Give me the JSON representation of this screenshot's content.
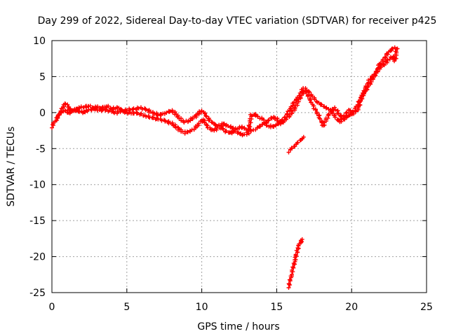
{
  "chart_data": {
    "type": "scatter",
    "title": "Day 299 of 2022, Sidereal Day-to-day VTEC variation (SDTVAR) for receiver p425",
    "xlabel": "GPS time / hours",
    "ylabel": "SDTVAR / TECUs",
    "xlim": [
      0,
      25
    ],
    "ylim": [
      -25,
      10
    ],
    "xticks": [
      0,
      5,
      10,
      15,
      20,
      25
    ],
    "yticks": [
      10,
      5,
      0,
      -5,
      -10,
      -15,
      -20,
      -25
    ],
    "grid": true,
    "marker": "+",
    "series": [
      {
        "name": "SDTVAR p425",
        "color": "#ff0000",
        "segments": [
          [
            [
              0.0,
              -2.0
            ],
            [
              0.1,
              -1.5
            ],
            [
              0.3,
              -1.0
            ],
            [
              0.5,
              -0.3
            ],
            [
              0.7,
              0.6
            ],
            [
              0.9,
              1.3
            ],
            [
              1.1,
              0.7
            ],
            [
              1.3,
              0.2
            ],
            [
              1.6,
              0.4
            ],
            [
              1.9,
              0.7
            ],
            [
              2.2,
              0.8
            ],
            [
              2.5,
              0.9
            ],
            [
              2.8,
              0.6
            ],
            [
              3.1,
              0.3
            ],
            [
              3.5,
              0.4
            ],
            [
              3.9,
              0.2
            ],
            [
              4.3,
              0.0
            ],
            [
              4.7,
              0.3
            ],
            [
              5.1,
              0.4
            ],
            [
              5.5,
              0.5
            ],
            [
              5.9,
              0.7
            ],
            [
              6.3,
              0.4
            ],
            [
              6.7,
              0.0
            ],
            [
              7.1,
              -0.3
            ],
            [
              7.5,
              -0.2
            ],
            [
              7.9,
              0.3
            ],
            [
              8.2,
              0.0
            ],
            [
              8.5,
              -0.8
            ],
            [
              8.8,
              -1.3
            ],
            [
              9.1,
              -1.2
            ],
            [
              9.4,
              -0.8
            ],
            [
              9.7,
              -0.3
            ],
            [
              10.0,
              0.3
            ],
            [
              10.2,
              -0.2
            ],
            [
              10.5,
              -1.0
            ],
            [
              10.8,
              -1.6
            ],
            [
              11.1,
              -1.9
            ],
            [
              11.4,
              -1.5
            ],
            [
              11.7,
              -1.8
            ],
            [
              12.0,
              -2.1
            ],
            [
              12.3,
              -2.3
            ],
            [
              12.6,
              -2.0
            ],
            [
              12.9,
              -2.2
            ],
            [
              13.2,
              -2.5
            ],
            [
              13.5,
              -2.4
            ],
            [
              13.8,
              -2.0
            ],
            [
              14.1,
              -1.6
            ],
            [
              14.4,
              -1.2
            ],
            [
              14.7,
              -0.6
            ],
            [
              15.0,
              -0.9
            ],
            [
              15.3,
              -1.5
            ],
            [
              15.6,
              -1.0
            ],
            [
              15.9,
              -0.3
            ],
            [
              16.2,
              0.6
            ],
            [
              16.5,
              1.8
            ],
            [
              16.8,
              3.0
            ],
            [
              17.0,
              2.7
            ],
            [
              17.3,
              1.5
            ],
            [
              17.6,
              0.3
            ],
            [
              17.9,
              -0.8
            ],
            [
              18.1,
              -1.8
            ],
            [
              18.3,
              -1.0
            ],
            [
              18.6,
              0.2
            ],
            [
              18.9,
              0.6
            ],
            [
              19.2,
              -0.3
            ],
            [
              19.5,
              -1.0
            ],
            [
              19.8,
              -0.3
            ],
            [
              20.1,
              -0.2
            ],
            [
              20.4,
              0.4
            ],
            [
              20.6,
              1.5
            ],
            [
              20.8,
              2.8
            ],
            [
              21.0,
              3.8
            ],
            [
              21.3,
              4.9
            ],
            [
              21.6,
              5.4
            ],
            [
              21.9,
              6.3
            ],
            [
              22.2,
              6.8
            ],
            [
              22.5,
              7.4
            ],
            [
              22.8,
              7.8
            ]
          ],
          [
            [
              0.3,
              -0.6
            ],
            [
              0.6,
              0.0
            ],
            [
              0.9,
              0.3
            ],
            [
              1.2,
              -0.1
            ],
            [
              1.5,
              0.5
            ],
            [
              1.8,
              0.2
            ],
            [
              2.1,
              0.0
            ],
            [
              2.4,
              0.3
            ],
            [
              2.7,
              0.5
            ],
            [
              3.0,
              0.8
            ],
            [
              3.3,
              0.6
            ],
            [
              3.7,
              0.9
            ],
            [
              4.0,
              0.5
            ],
            [
              4.4,
              0.7
            ],
            [
              4.8,
              0.1
            ],
            [
              5.2,
              -0.1
            ],
            [
              5.6,
              0.0
            ],
            [
              6.0,
              -0.3
            ],
            [
              6.4,
              -0.5
            ],
            [
              6.8,
              -0.8
            ],
            [
              7.2,
              -0.9
            ],
            [
              7.6,
              -1.2
            ],
            [
              8.0,
              -1.5
            ],
            [
              8.3,
              -2.0
            ],
            [
              8.6,
              -2.5
            ],
            [
              8.9,
              -2.8
            ],
            [
              9.2,
              -2.6
            ],
            [
              9.5,
              -2.3
            ],
            [
              9.8,
              -1.5
            ],
            [
              10.1,
              -1.0
            ],
            [
              10.4,
              -2.0
            ],
            [
              10.7,
              -2.5
            ],
            [
              11.0,
              -2.3
            ],
            [
              11.3,
              -2.0
            ],
            [
              11.6,
              -2.6
            ],
            [
              11.9,
              -2.8
            ],
            [
              12.2,
              -2.6
            ],
            [
              12.5,
              -2.9
            ],
            [
              12.8,
              -3.1
            ],
            [
              13.1,
              -2.8
            ],
            [
              13.3,
              -0.4
            ],
            [
              13.5,
              -0.2
            ],
            [
              13.8,
              -0.6
            ],
            [
              14.1,
              -1.0
            ],
            [
              14.4,
              -1.8
            ],
            [
              14.7,
              -2.0
            ],
            [
              15.0,
              -1.7
            ],
            [
              15.3,
              -1.2
            ],
            [
              15.6,
              -0.5
            ],
            [
              15.9,
              0.5
            ],
            [
              16.2,
              1.5
            ],
            [
              16.5,
              2.3
            ],
            [
              16.8,
              3.4
            ],
            [
              17.1,
              3.0
            ],
            [
              17.4,
              2.2
            ],
            [
              17.7,
              1.5
            ],
            [
              18.0,
              1.0
            ],
            [
              18.3,
              0.7
            ],
            [
              18.6,
              0.3
            ],
            [
              18.9,
              -0.6
            ],
            [
              19.2,
              -1.3
            ],
            [
              19.5,
              -0.6
            ],
            [
              19.8,
              0.4
            ],
            [
              20.1,
              0.0
            ],
            [
              20.4,
              1.2
            ],
            [
              20.7,
              2.3
            ],
            [
              21.0,
              3.3
            ],
            [
              21.3,
              4.2
            ],
            [
              21.6,
              5.5
            ],
            [
              21.9,
              6.8
            ],
            [
              22.2,
              7.5
            ],
            [
              22.4,
              8.3
            ],
            [
              22.6,
              8.6
            ],
            [
              22.8,
              9.0
            ],
            [
              23.0,
              8.8
            ],
            [
              22.9,
              7.2
            ],
            [
              22.7,
              7.6
            ]
          ],
          [
            [
              15.8,
              -5.4
            ],
            [
              16.0,
              -5.0
            ],
            [
              16.2,
              -4.6
            ],
            [
              16.4,
              -4.2
            ],
            [
              16.6,
              -3.8
            ],
            [
              16.8,
              -3.4
            ]
          ],
          [
            [
              15.8,
              -24.2
            ],
            [
              15.9,
              -23.3
            ],
            [
              16.0,
              -22.4
            ],
            [
              16.1,
              -21.5
            ],
            [
              16.2,
              -20.7
            ],
            [
              16.3,
              -19.8
            ],
            [
              16.4,
              -19.0
            ],
            [
              16.5,
              -18.4
            ],
            [
              16.6,
              -18.0
            ],
            [
              16.7,
              -17.6
            ]
          ]
        ]
      }
    ]
  }
}
